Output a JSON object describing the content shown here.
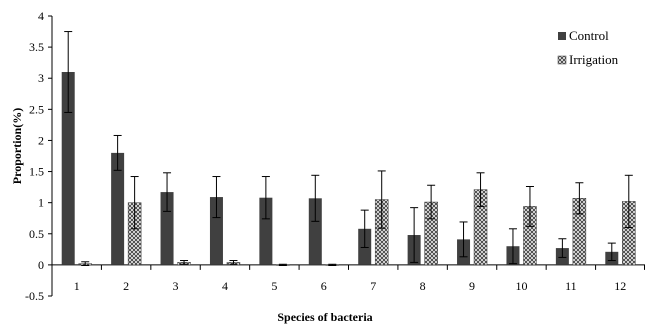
{
  "chart_data": {
    "type": "bar",
    "title": "",
    "xlabel": "Species of bacteria",
    "ylabel": "Proportion(%)",
    "ylim": [
      -0.5,
      4
    ],
    "yticks": [
      "-0.5",
      "0",
      "0.5",
      "1",
      "1.5",
      "2",
      "2.5",
      "3",
      "3.5",
      "4"
    ],
    "categories": [
      "1",
      "2",
      "3",
      "4",
      "5",
      "6",
      "7",
      "8",
      "9",
      "10",
      "11",
      "12"
    ],
    "grid": false,
    "legend_position": "top-right",
    "series": [
      {
        "name": "Control",
        "pattern": "solid",
        "color": "#404040",
        "values": [
          3.1,
          1.8,
          1.17,
          1.09,
          1.08,
          1.07,
          0.58,
          0.48,
          0.41,
          0.3,
          0.27,
          0.21
        ],
        "errors": [
          0.65,
          0.28,
          0.31,
          0.33,
          0.34,
          0.37,
          0.3,
          0.44,
          0.28,
          0.28,
          0.15,
          0.14
        ]
      },
      {
        "name": "Irrigation",
        "pattern": "crosshatch",
        "color": "#505050",
        "values": [
          0.02,
          1.0,
          0.04,
          0.04,
          0.0,
          0.0,
          1.05,
          1.01,
          1.21,
          0.94,
          1.07,
          1.02
        ],
        "errors": [
          0.03,
          0.42,
          0.03,
          0.03,
          0.01,
          0.01,
          0.46,
          0.27,
          0.27,
          0.32,
          0.25,
          0.42
        ]
      }
    ]
  }
}
